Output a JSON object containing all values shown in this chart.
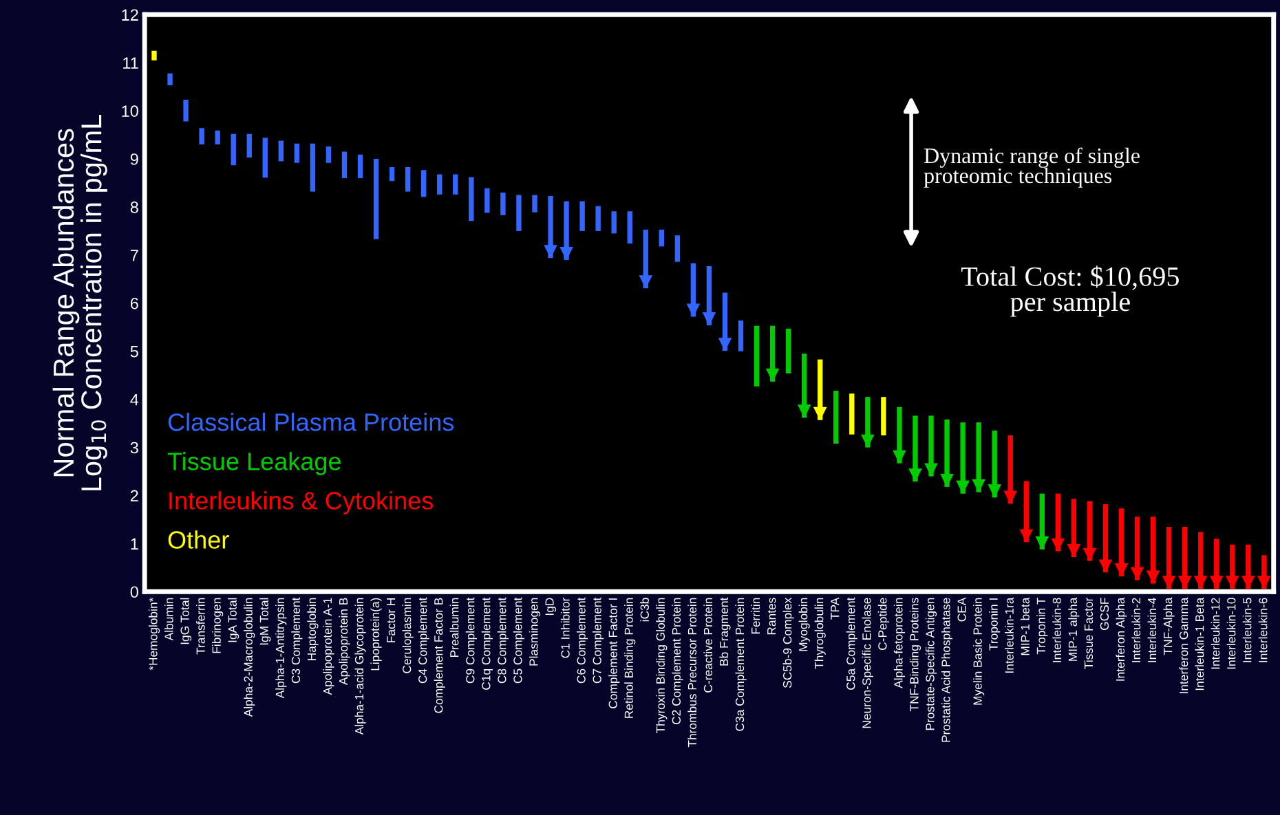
{
  "chart_data": {
    "type": "bar",
    "ylabel": "Normal Range Abundances\nLog$_{10}$ Concentration in pg/mL",
    "categories": [
      "*Hemoglobin*",
      "Albumin",
      "IgG Total",
      "Transferrin",
      "Fibrinogen",
      "IgA Total",
      "Alpha-2-Macroglobulin",
      "IgM Total",
      "Alpha-1-Antitrypsin",
      "C3 Complement",
      "Haptoglobin",
      "Apolipoprotein A-1",
      "Apolipoprotein B",
      "Alpha-1-acid Glycoprotein",
      "Lipoprotein(a)",
      "Factor H",
      "Ceruloplasmin",
      "C4 Complement",
      "Complement Factor B",
      "Prealbumin",
      "C9 Complement",
      "C1q Complement",
      "C8 Complement",
      "C5 Complement",
      "Plasminogen",
      "IgD",
      "C1 Inhibitor",
      "C6 Complement",
      "C7 Complement",
      "Complement Factor I",
      "Retinol Binding Protein",
      "iC3b",
      "Thyroxin Binding Globulin",
      "C2 Complement Protein",
      "Thrombus Precursor Protein",
      "C-reactive Protein",
      "Bb Fragment",
      "C3a Complement Protein",
      "Ferritin",
      "Rantes",
      "SC5b-9 Complex",
      "Myoglobin",
      "Thyroglobulin",
      "TPA",
      "C5a Complement",
      "Neuron-Specific Enolase",
      "C-Peptide",
      "Alpha-fetoprotein",
      "TNF-Binding Proteins",
      "Prostate-Specific Antigen",
      "Prostatic Acid Phosphatase",
      "CEA",
      "Myelin Basic Protein",
      "Troponin I",
      "Interleukin-1ra",
      "MIP-1 beta",
      "Troponin T",
      "Interleukin-8",
      "MIP-1 alpha",
      "Tissue Factor",
      "GCSF",
      "Interferon Alpha",
      "Interleukin-2",
      "Interleukin-4",
      "TNF-Alpha",
      "Interferon Gamma",
      "Interleukin-1 Beta",
      "Interleukin-12",
      "Interleukin-10",
      "Interleukin-5",
      "Interleukin-6"
    ],
    "series": [
      {
        "name": "Classical Plasma Proteins",
        "color": "#3366ff",
        "values": [
          null,
          0.25,
          0.45,
          0.34,
          0.29,
          0.65,
          0.49,
          0.83,
          0.43,
          0.4,
          1.0,
          0.34,
          0.55,
          0.49,
          1.67,
          0.29,
          0.51,
          0.56,
          0.42,
          0.42,
          0.91,
          0.51,
          0.47,
          0.75,
          0.36,
          1.29,
          1.22,
          0.62,
          0.52,
          0.46,
          0.67,
          1.22,
          0.35,
          0.55,
          1.11,
          1.23,
          1.21,
          0.64,
          null,
          null,
          null,
          null,
          null,
          null,
          null,
          null,
          null,
          null,
          null,
          null,
          null,
          null,
          null,
          null,
          null,
          null,
          null,
          null,
          null,
          null,
          null,
          null,
          null,
          null,
          null,
          null,
          null,
          null,
          null,
          null,
          null
        ],
        "base": [
          null,
          10.53,
          9.78,
          9.3,
          9.3,
          8.87,
          9.03,
          8.61,
          8.95,
          8.92,
          8.32,
          8.92,
          8.6,
          8.6,
          7.33,
          8.54,
          8.32,
          8.21,
          8.26,
          8.26,
          7.71,
          7.88,
          7.83,
          7.5,
          7.89,
          6.94,
          6.9,
          7.5,
          7.5,
          7.45,
          7.24,
          6.31,
          7.18,
          6.86,
          5.72,
          5.54,
          5.01,
          5.0,
          null,
          null,
          null,
          null,
          null,
          null,
          null,
          null,
          null,
          null,
          null,
          null,
          null,
          null,
          null,
          null,
          null,
          null,
          null,
          null,
          null,
          null,
          null,
          null,
          null,
          null,
          null,
          null,
          null,
          null,
          null,
          null,
          null
        ]
      },
      {
        "name": "Tissue Leakage",
        "color": "#00cc00",
        "values": [
          null,
          null,
          null,
          null,
          null,
          null,
          null,
          null,
          null,
          null,
          null,
          null,
          null,
          null,
          null,
          null,
          null,
          null,
          null,
          null,
          null,
          null,
          null,
          null,
          null,
          null,
          null,
          null,
          null,
          null,
          null,
          null,
          null,
          null,
          null,
          null,
          null,
          null,
          1.26,
          1.16,
          0.93,
          1.33,
          null,
          1.1,
          null,
          1.05,
          null,
          1.17,
          1.37,
          1.26,
          1.4,
          1.48,
          1.45,
          1.39,
          null,
          null,
          1.16,
          null,
          null,
          null,
          null,
          null,
          null,
          null,
          null,
          null,
          null,
          null,
          null,
          null,
          null
        ],
        "base": [
          null,
          null,
          null,
          null,
          null,
          null,
          null,
          null,
          null,
          null,
          null,
          null,
          null,
          null,
          null,
          null,
          null,
          null,
          null,
          null,
          null,
          null,
          null,
          null,
          null,
          null,
          null,
          null,
          null,
          null,
          null,
          null,
          null,
          null,
          null,
          null,
          null,
          null,
          4.27,
          4.37,
          4.54,
          3.62,
          null,
          3.08,
          null,
          3.0,
          null,
          2.67,
          2.29,
          2.4,
          2.18,
          2.04,
          2.07,
          1.96,
          null,
          null,
          0.88,
          null,
          null,
          null,
          null,
          null,
          null,
          null,
          null,
          null,
          null,
          null,
          null,
          null,
          null
        ]
      },
      {
        "name": "Interleukins & Cytokines",
        "color": "#ff0000",
        "values": [
          null,
          null,
          null,
          null,
          null,
          null,
          null,
          null,
          null,
          null,
          null,
          null,
          null,
          null,
          null,
          null,
          null,
          null,
          null,
          null,
          null,
          null,
          null,
          null,
          null,
          null,
          null,
          null,
          null,
          null,
          null,
          null,
          null,
          null,
          null,
          null,
          null,
          null,
          null,
          null,
          null,
          null,
          null,
          null,
          null,
          null,
          null,
          null,
          null,
          null,
          null,
          null,
          null,
          null,
          1.42,
          1.27,
          null,
          1.2,
          1.21,
          1.24,
          1.42,
          1.41,
          1.32,
          1.39,
          1.29,
          1.29,
          1.18,
          1.04,
          0.92,
          0.92,
          0.7
        ],
        "base": [
          null,
          null,
          null,
          null,
          null,
          null,
          null,
          null,
          null,
          null,
          null,
          null,
          null,
          null,
          null,
          null,
          null,
          null,
          null,
          null,
          null,
          null,
          null,
          null,
          null,
          null,
          null,
          null,
          null,
          null,
          null,
          null,
          null,
          null,
          null,
          null,
          null,
          null,
          null,
          null,
          null,
          null,
          null,
          null,
          null,
          null,
          null,
          null,
          null,
          null,
          null,
          null,
          null,
          null,
          1.83,
          1.03,
          null,
          0.84,
          0.72,
          0.64,
          0.4,
          0.32,
          0.24,
          0.17,
          0.06,
          0.06,
          0.06,
          0.06,
          0.06,
          0.06,
          0.06
        ]
      },
      {
        "name": "Other",
        "color": "#ffff00",
        "values": [
          0.2,
          null,
          null,
          null,
          null,
          null,
          null,
          null,
          null,
          null,
          null,
          null,
          null,
          null,
          null,
          null,
          null,
          null,
          null,
          null,
          null,
          null,
          null,
          null,
          null,
          null,
          null,
          null,
          null,
          null,
          null,
          null,
          null,
          null,
          null,
          null,
          null,
          null,
          null,
          null,
          null,
          null,
          1.26,
          null,
          0.85,
          null,
          0.8,
          null,
          null,
          null,
          null,
          null,
          null,
          null,
          null,
          null,
          null,
          null,
          null,
          null,
          null,
          null,
          null,
          null,
          null,
          null,
          null,
          null,
          null,
          null,
          null
        ],
        "base": [
          11.05,
          null,
          null,
          null,
          null,
          null,
          null,
          null,
          null,
          null,
          null,
          null,
          null,
          null,
          null,
          null,
          null,
          null,
          null,
          null,
          null,
          null,
          null,
          null,
          null,
          null,
          null,
          null,
          null,
          null,
          null,
          null,
          null,
          null,
          null,
          null,
          null,
          null,
          null,
          null,
          null,
          null,
          3.57,
          null,
          3.27,
          null,
          3.25,
          null,
          null,
          null,
          null,
          null,
          null,
          null,
          null,
          null,
          null,
          null,
          null,
          null,
          null,
          null,
          null,
          null,
          null,
          null,
          null,
          null,
          null,
          null,
          null
        ]
      },
      {
        "type": "scatter",
        "marker": "triangle",
        "values": [
          null,
          null,
          null,
          null,
          null,
          null,
          null,
          null,
          null,
          null,
          null,
          null,
          null,
          null,
          null,
          null,
          null,
          null,
          null,
          null,
          null,
          null,
          null,
          null,
          null,
          7.07,
          7.03,
          null,
          null,
          null,
          null,
          6.44,
          null,
          null,
          5.85,
          5.67,
          5.14,
          null,
          null,
          4.5,
          null,
          3.75,
          3.7,
          null,
          null,
          3.13,
          null,
          2.8,
          2.42,
          2.53,
          2.31,
          2.17,
          2.2,
          2.09,
          1.96,
          1.16,
          1.01,
          0.97,
          0.85,
          0.77,
          0.53,
          0.45,
          0.37,
          0.3,
          0.19,
          0.19,
          0.19,
          0.19,
          0.19,
          0.19,
          0.19
        ],
        "colors": [
          null,
          null,
          null,
          null,
          null,
          null,
          null,
          null,
          null,
          null,
          null,
          null,
          null,
          null,
          null,
          null,
          null,
          null,
          null,
          null,
          null,
          null,
          null,
          null,
          null,
          "#3366ff",
          "#3366ff",
          null,
          null,
          null,
          null,
          "#3366ff",
          null,
          null,
          "#3366ff",
          "#3366ff",
          "#3366ff",
          null,
          null,
          "#00cc00",
          null,
          "#00cc00",
          "#ffff00",
          null,
          null,
          "#00cc00",
          null,
          "#00cc00",
          "#00cc00",
          "#00cc00",
          "#00cc00",
          "#00cc00",
          "#00cc00",
          "#00cc00",
          "#ff0000",
          "#ff0000",
          "#00cc00",
          "#ff0000",
          "#ff0000",
          "#ff0000",
          "#ff0000",
          "#ff0000",
          "#ff0000",
          "#ff0000",
          "#ff0000",
          "#ff0000",
          "#ff0000",
          "#ff0000",
          "#ff0000",
          "#ff0000",
          "#ff0000"
        ]
      }
    ],
    "ylim": [
      0,
      12
    ],
    "yticks": [
      0,
      1,
      2,
      3,
      4,
      5,
      6,
      7,
      8,
      9,
      10,
      11,
      12
    ],
    "grid": false,
    "legend": "bottom left",
    "annotations": [
      "Dynamic range of single\nproteomic techniques",
      "Total Cost: $10,695\nper sample"
    ]
  }
}
